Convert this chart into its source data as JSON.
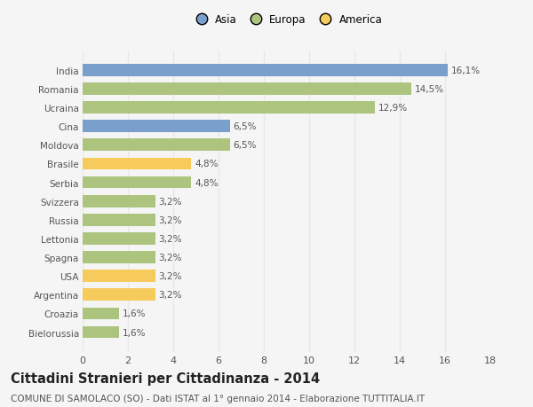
{
  "categories": [
    "Bielorussia",
    "Croazia",
    "Argentina",
    "USA",
    "Spagna",
    "Lettonia",
    "Russia",
    "Svizzera",
    "Serbia",
    "Brasile",
    "Moldova",
    "Cina",
    "Ucraina",
    "Romania",
    "India"
  ],
  "values": [
    1.6,
    1.6,
    3.2,
    3.2,
    3.2,
    3.2,
    3.2,
    3.2,
    4.8,
    4.8,
    6.5,
    6.5,
    12.9,
    14.5,
    16.1
  ],
  "labels": [
    "1,6%",
    "1,6%",
    "3,2%",
    "3,2%",
    "3,2%",
    "3,2%",
    "3,2%",
    "3,2%",
    "4,8%",
    "4,8%",
    "6,5%",
    "6,5%",
    "12,9%",
    "14,5%",
    "16,1%"
  ],
  "colors": [
    "#adc47e",
    "#adc47e",
    "#f6ca5b",
    "#f6ca5b",
    "#adc47e",
    "#adc47e",
    "#adc47e",
    "#adc47e",
    "#adc47e",
    "#f6ca5b",
    "#adc47e",
    "#7b9fcb",
    "#adc47e",
    "#adc47e",
    "#7b9fcb"
  ],
  "legend": [
    {
      "label": "Asia",
      "color": "#7b9fcb"
    },
    {
      "label": "Europa",
      "color": "#adc47e"
    },
    {
      "label": "America",
      "color": "#f6ca5b"
    }
  ],
  "title": "Cittadini Stranieri per Cittadinanza - 2014",
  "subtitle": "COMUNE DI SAMOLACO (SO) - Dati ISTAT al 1° gennaio 2014 - Elaborazione TUTTITALIA.IT",
  "xlim": [
    0,
    18
  ],
  "xticks": [
    0,
    2,
    4,
    6,
    8,
    10,
    12,
    14,
    16,
    18
  ],
  "background_color": "#f5f5f5",
  "grid_color": "#e8e8e8",
  "bar_height": 0.65,
  "title_fontsize": 10.5,
  "subtitle_fontsize": 7.5,
  "label_fontsize": 7.5,
  "tick_fontsize": 8,
  "ytick_fontsize": 7.5
}
